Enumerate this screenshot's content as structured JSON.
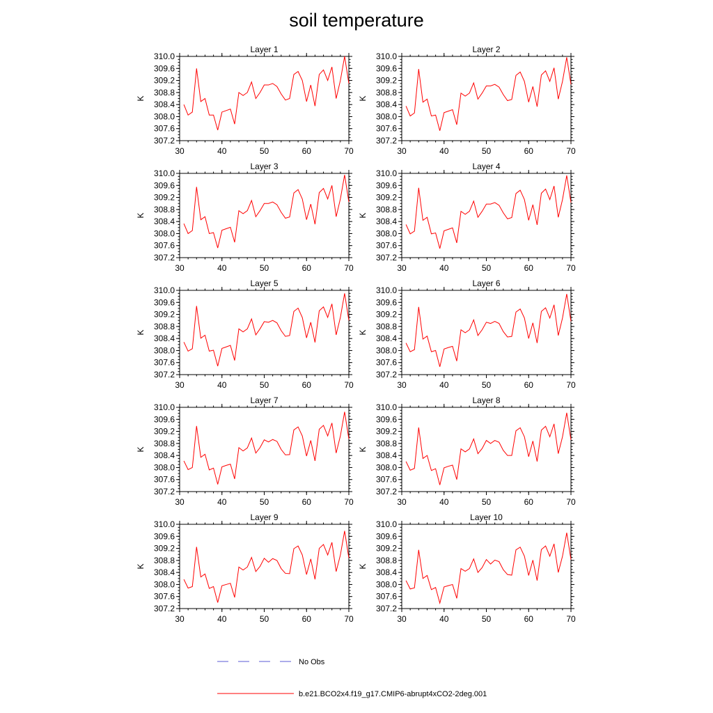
{
  "title": "soil temperature",
  "chart_data": {
    "type": "line",
    "x": [
      30,
      31,
      32,
      33,
      34,
      35,
      36,
      37,
      38,
      39,
      40,
      41,
      42,
      43,
      44,
      45,
      46,
      47,
      48,
      49,
      50,
      51,
      52,
      53,
      54,
      55,
      56,
      57,
      58,
      59,
      60,
      61,
      62,
      63,
      64,
      65,
      66,
      67,
      68,
      69,
      70
    ],
    "xlim": [
      30,
      70
    ],
    "ylim": [
      307.2,
      310.0
    ],
    "xticks": [
      "30",
      "40",
      "50",
      "60",
      "70"
    ],
    "yticks": [
      "307.2",
      "307.6",
      "308.0",
      "308.4",
      "308.8",
      "309.2",
      "309.6",
      "310.0"
    ],
    "ylabel": "K",
    "grid": false,
    "legend": [
      {
        "label": "No Obs",
        "color": "#5a5ad6",
        "style": "dashed"
      },
      {
        "label": "b.e21.BCO2x4.f19_g17.CMIP6-abrupt4xCO2-2deg.001",
        "color": "#ff0000",
        "style": "solid"
      }
    ],
    "panels": [
      {
        "title": "Layer 1",
        "series": [
          {
            "values": [
              null,
              308.4,
              308.05,
              308.15,
              309.6,
              308.5,
              308.6,
              308.05,
              308.05,
              307.55,
              308.15,
              308.2,
              308.25,
              307.75,
              308.8,
              308.7,
              308.8,
              309.15,
              308.6,
              308.8,
              309.05,
              309.05,
              309.1,
              309.0,
              308.75,
              308.55,
              308.6,
              309.4,
              309.5,
              309.2,
              308.5,
              309.05,
              308.35,
              309.4,
              309.55,
              309.2,
              309.65,
              308.6,
              309.2,
              310.0,
              309.1
            ]
          }
        ]
      },
      {
        "title": "Layer 2",
        "series": [
          {
            "values": [
              null,
              308.35,
              308.02,
              308.12,
              309.58,
              308.48,
              308.58,
              308.02,
              308.05,
              307.53,
              308.13,
              308.18,
              308.23,
              307.73,
              308.78,
              308.68,
              308.78,
              309.12,
              308.58,
              308.78,
              309.02,
              309.02,
              309.07,
              308.98,
              308.73,
              308.53,
              308.57,
              309.37,
              309.48,
              309.17,
              308.48,
              309.0,
              308.33,
              309.38,
              309.52,
              309.17,
              309.62,
              308.58,
              309.17,
              309.97,
              309.07
            ]
          }
        ]
      },
      {
        "title": "Layer 3",
        "series": [
          {
            "values": [
              null,
              308.33,
              308.0,
              308.1,
              309.55,
              308.46,
              308.56,
              308.0,
              308.03,
              307.52,
              308.11,
              308.16,
              308.21,
              307.71,
              308.76,
              308.66,
              308.76,
              309.1,
              308.56,
              308.76,
              309.0,
              309.0,
              309.05,
              308.96,
              308.71,
              308.51,
              308.55,
              309.35,
              309.46,
              309.15,
              308.46,
              308.98,
              308.31,
              309.36,
              309.5,
              309.15,
              309.6,
              308.56,
              309.15,
              309.95,
              309.05
            ]
          }
        ]
      },
      {
        "title": "Layer 4",
        "series": [
          {
            "values": [
              null,
              308.3,
              307.99,
              308.08,
              309.52,
              308.44,
              308.54,
              307.99,
              308.02,
              307.5,
              308.09,
              308.14,
              308.19,
              307.69,
              308.74,
              308.64,
              308.74,
              309.08,
              308.54,
              308.74,
              308.98,
              308.98,
              309.03,
              308.94,
              308.69,
              308.49,
              308.53,
              309.33,
              309.44,
              309.13,
              308.44,
              308.96,
              308.29,
              309.34,
              309.48,
              309.13,
              309.58,
              308.54,
              309.13,
              309.93,
              309.03
            ]
          }
        ]
      },
      {
        "title": "Layer 5",
        "series": [
          {
            "values": [
              null,
              308.28,
              307.98,
              308.06,
              309.48,
              308.41,
              308.51,
              307.98,
              308.01,
              307.48,
              308.07,
              308.12,
              308.17,
              307.67,
              308.72,
              308.62,
              308.72,
              309.05,
              308.52,
              308.72,
              308.96,
              308.94,
              309.0,
              308.92,
              308.66,
              308.47,
              308.5,
              309.3,
              309.41,
              309.1,
              308.42,
              308.94,
              308.27,
              309.32,
              309.45,
              309.1,
              309.55,
              308.52,
              309.1,
              309.9,
              309.0
            ]
          }
        ]
      },
      {
        "title": "Layer 6",
        "series": [
          {
            "values": [
              null,
              308.25,
              307.96,
              308.03,
              309.45,
              308.38,
              308.48,
              307.96,
              308.0,
              307.46,
              308.05,
              308.1,
              308.14,
              307.65,
              308.69,
              308.59,
              308.69,
              309.02,
              308.5,
              308.69,
              308.94,
              308.9,
              308.97,
              308.9,
              308.63,
              308.45,
              308.47,
              309.28,
              309.38,
              309.08,
              308.4,
              308.92,
              308.25,
              309.3,
              309.42,
              309.08,
              309.52,
              308.5,
              309.08,
              309.88,
              308.97
            ]
          }
        ]
      },
      {
        "title": "Layer 7",
        "series": [
          {
            "values": [
              null,
              308.22,
              307.93,
              308.0,
              309.38,
              308.34,
              308.44,
              307.92,
              307.98,
              307.44,
              308.02,
              308.07,
              308.11,
              307.62,
              308.66,
              308.55,
              308.65,
              308.98,
              308.48,
              308.66,
              308.92,
              308.85,
              308.93,
              308.87,
              308.6,
              308.42,
              308.43,
              309.25,
              309.35,
              309.05,
              308.38,
              308.9,
              308.22,
              309.27,
              309.4,
              309.05,
              309.48,
              308.48,
              309.05,
              309.85,
              308.95
            ]
          }
        ]
      },
      {
        "title": "Layer 8",
        "series": [
          {
            "values": [
              null,
              308.2,
              307.91,
              307.97,
              309.33,
              308.3,
              308.4,
              307.9,
              307.96,
              307.42,
              307.99,
              308.04,
              308.08,
              307.6,
              308.62,
              308.52,
              308.62,
              308.95,
              308.46,
              308.63,
              308.9,
              308.8,
              308.9,
              308.84,
              308.57,
              308.4,
              308.4,
              309.22,
              309.32,
              309.02,
              308.36,
              308.88,
              308.2,
              309.24,
              309.37,
              309.02,
              309.45,
              308.46,
              309.02,
              309.82,
              308.92
            ]
          }
        ]
      },
      {
        "title": "Layer 9",
        "series": [
          {
            "values": [
              null,
              308.17,
              307.88,
              307.93,
              309.25,
              308.25,
              308.35,
              307.87,
              307.93,
              307.4,
              307.96,
              308.0,
              308.04,
              307.57,
              308.58,
              308.48,
              308.58,
              308.9,
              308.43,
              308.6,
              308.87,
              308.74,
              308.86,
              308.8,
              308.53,
              308.37,
              308.36,
              309.19,
              309.28,
              308.98,
              308.33,
              308.85,
              308.17,
              309.2,
              309.33,
              308.98,
              309.4,
              308.43,
              308.98,
              309.78,
              308.88
            ]
          }
        ]
      },
      {
        "title": "Layer 10",
        "series": [
          {
            "values": [
              null,
              308.13,
              307.85,
              307.89,
              309.15,
              308.2,
              308.3,
              307.83,
              307.9,
              307.38,
              307.92,
              307.96,
              308.0,
              307.54,
              308.53,
              308.44,
              308.53,
              308.85,
              308.4,
              308.56,
              308.83,
              308.68,
              308.81,
              308.76,
              308.49,
              308.33,
              308.31,
              309.15,
              309.24,
              308.94,
              308.3,
              308.81,
              308.13,
              309.16,
              309.28,
              308.94,
              309.35,
              308.4,
              308.94,
              309.72,
              308.83
            ]
          }
        ]
      }
    ]
  }
}
